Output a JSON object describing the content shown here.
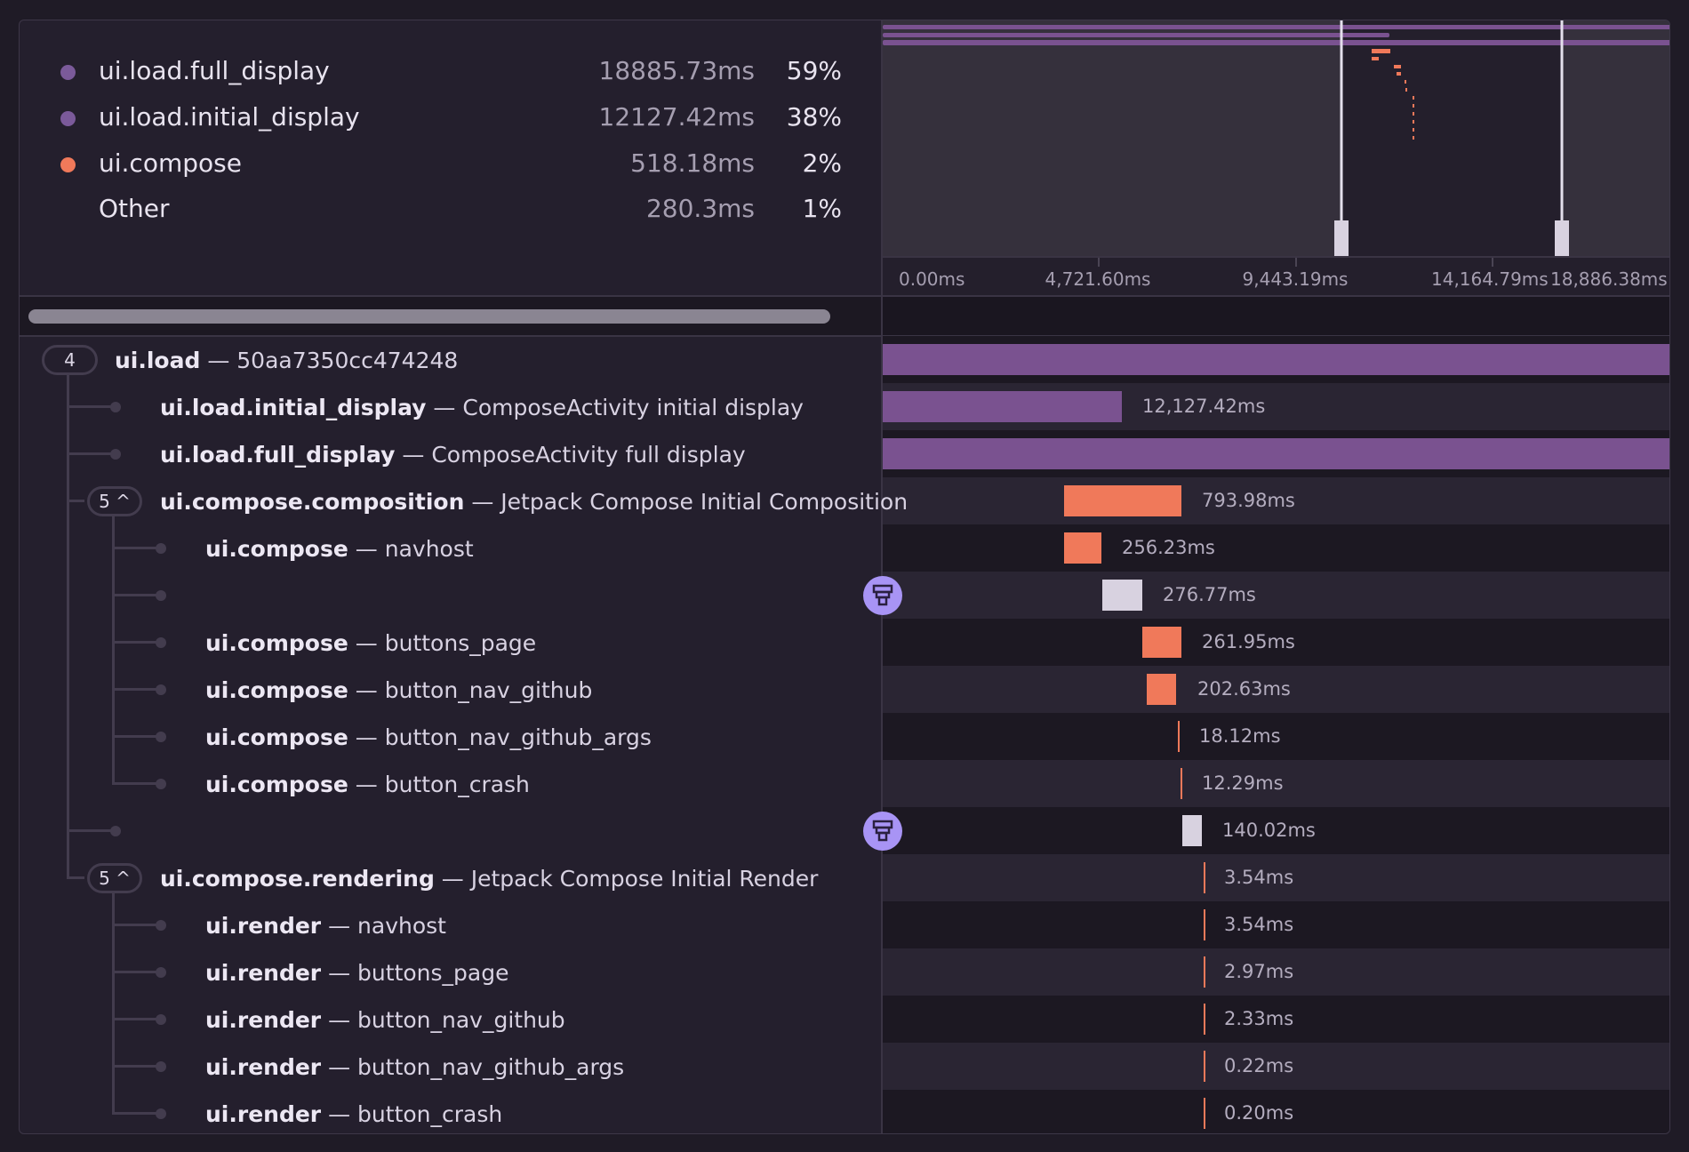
{
  "legend": [
    {
      "label": "ui.load.full_display",
      "value": "18885.73ms",
      "percent": "59%",
      "color": "#7b5a9a"
    },
    {
      "label": "ui.load.initial_display",
      "value": "12127.42ms",
      "percent": "38%",
      "color": "#7b5a9a"
    },
    {
      "label": "ui.compose",
      "value": "518.18ms",
      "percent": "2%",
      "color": "#f0795a"
    },
    {
      "label": "Other",
      "value": "280.3ms",
      "percent": "1%",
      "color": ""
    }
  ],
  "axis_ticks": [
    "0.00ms",
    "4,721.60ms",
    "9,443.19ms",
    "14,164.79ms",
    "18,886.38ms"
  ],
  "colors": {
    "load": "#7a5290",
    "compose": "#f0795a",
    "gap": "#d8d2e0",
    "marker": "#a894f5"
  },
  "rows": [
    {
      "op": "ui.load",
      "desc": "50aa7350cc474248",
      "duration": "",
      "kind": "load",
      "badge": "4",
      "icon": ""
    },
    {
      "op": "ui.load.initial_display",
      "desc": "ComposeActivity initial display",
      "duration": "12,127.42ms",
      "kind": "load",
      "badge": "",
      "icon": ""
    },
    {
      "op": "ui.load.full_display",
      "desc": "ComposeActivity full display",
      "duration": "",
      "kind": "load",
      "badge": "",
      "icon": ""
    },
    {
      "op": "ui.compose.composition",
      "desc": "Jetpack Compose Initial Composition",
      "duration": "793.98ms",
      "kind": "compose",
      "badge": "5 ^",
      "icon": ""
    },
    {
      "op": "ui.compose",
      "desc": "navhost",
      "duration": "256.23ms",
      "kind": "compose",
      "badge": "",
      "icon": ""
    },
    {
      "op": "",
      "desc": "",
      "duration": "276.77ms",
      "kind": "gap",
      "badge": "",
      "icon": "missing-instrumentation-icon"
    },
    {
      "op": "ui.compose",
      "desc": "buttons_page",
      "duration": "261.95ms",
      "kind": "compose",
      "badge": "",
      "icon": ""
    },
    {
      "op": "ui.compose",
      "desc": "button_nav_github",
      "duration": "202.63ms",
      "kind": "compose",
      "badge": "",
      "icon": ""
    },
    {
      "op": "ui.compose",
      "desc": "button_nav_github_args",
      "duration": "18.12ms",
      "kind": "compose",
      "badge": "",
      "icon": ""
    },
    {
      "op": "ui.compose",
      "desc": "button_crash",
      "duration": "12.29ms",
      "kind": "compose",
      "badge": "",
      "icon": ""
    },
    {
      "op": "",
      "desc": "",
      "duration": "140.02ms",
      "kind": "gap",
      "badge": "",
      "icon": "missing-instrumentation-icon"
    },
    {
      "op": "ui.compose.rendering",
      "desc": "Jetpack Compose Initial Render",
      "duration": "3.54ms",
      "kind": "compose",
      "badge": "5 ^",
      "icon": ""
    },
    {
      "op": "ui.render",
      "desc": "navhost",
      "duration": "3.54ms",
      "kind": "compose",
      "badge": "",
      "icon": ""
    },
    {
      "op": "ui.render",
      "desc": "buttons_page",
      "duration": "2.97ms",
      "kind": "compose",
      "badge": "",
      "icon": ""
    },
    {
      "op": "ui.render",
      "desc": "button_nav_github",
      "duration": "2.33ms",
      "kind": "compose",
      "badge": "",
      "icon": ""
    },
    {
      "op": "ui.render",
      "desc": "button_nav_github_args",
      "duration": "0.22ms",
      "kind": "compose",
      "badge": "",
      "icon": ""
    },
    {
      "op": "ui.render",
      "desc": "button_crash",
      "duration": "0.20ms",
      "kind": "compose",
      "badge": "",
      "icon": ""
    }
  ]
}
